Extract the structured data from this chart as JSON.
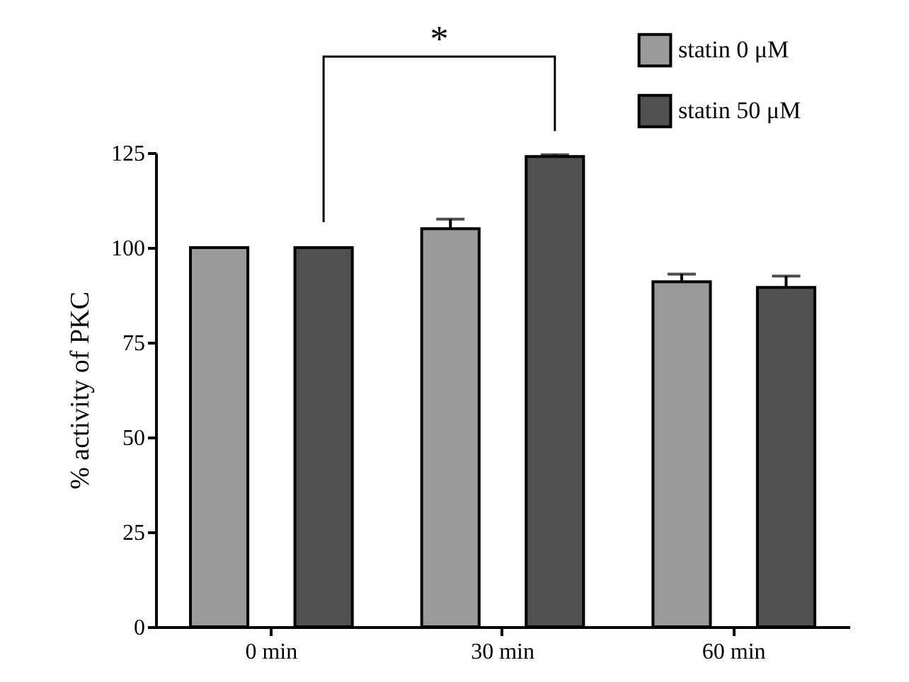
{
  "chart_data": {
    "type": "bar",
    "ylabel": "% activity of PKC",
    "categories": [
      "0 min",
      "30 min",
      "60 min"
    ],
    "series": [
      {
        "name": "statin 0 μM",
        "color": "#9a9a9a",
        "values": [
          100,
          105,
          91
        ],
        "errors": [
          null,
          [
            105,
            107.5
          ],
          [
            91,
            93
          ]
        ]
      },
      {
        "name": "statin 50 μM",
        "color": "#505050",
        "values": [
          100,
          124,
          89.5
        ],
        "errors": [
          null,
          [
            124,
            124.5
          ],
          [
            89.5,
            92.5
          ]
        ]
      }
    ],
    "ylim": [
      0,
      125
    ],
    "yticks": [
      0,
      25,
      50,
      75,
      100,
      125
    ],
    "grid": false,
    "legend": "top right",
    "annotations": [
      "*"
    ]
  }
}
